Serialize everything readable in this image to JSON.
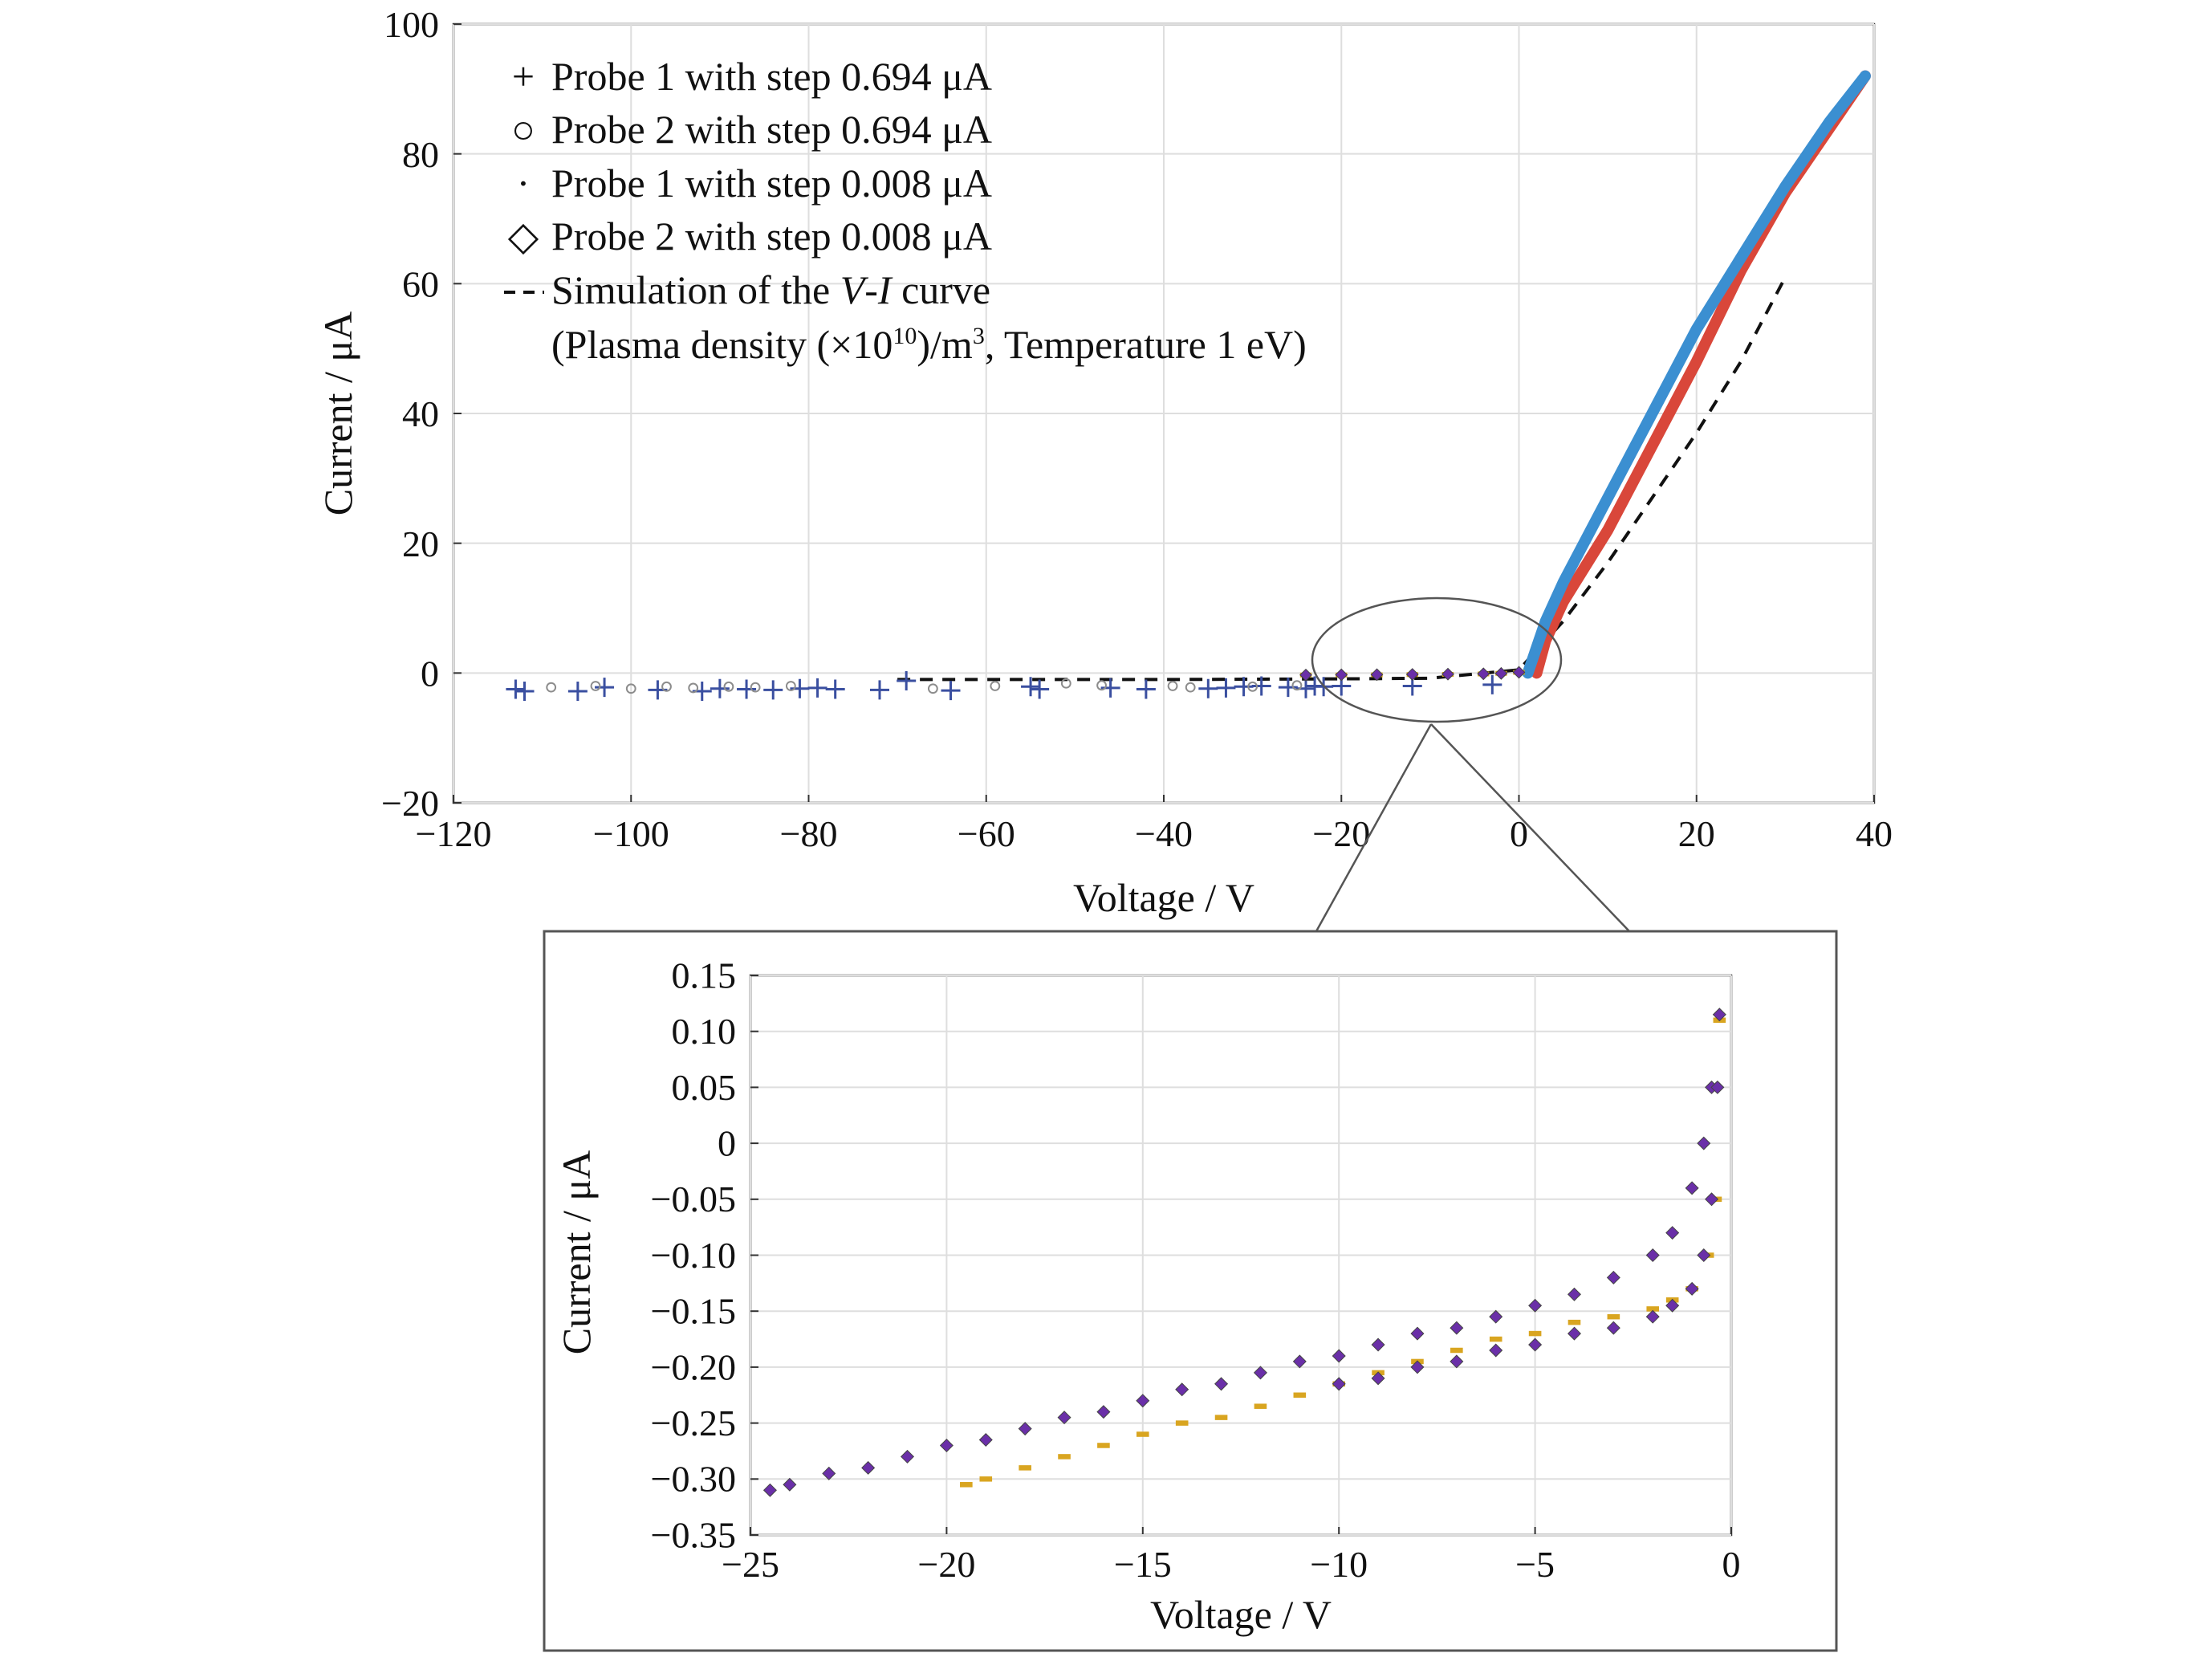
{
  "chart_data": [
    {
      "type": "scatter",
      "xlabel": "Voltage / V",
      "ylabel": "Current / μA",
      "xlim": [
        -120,
        40
      ],
      "ylim": [
        -20,
        100
      ],
      "xticks": [
        -120,
        -100,
        -80,
        -60,
        -40,
        -20,
        0,
        20,
        40
      ],
      "yticks": [
        -20,
        0,
        20,
        40,
        60,
        80,
        100
      ],
      "xtick_labels": [
        "−120",
        "−100",
        "−80",
        "−60",
        "−40",
        "−20",
        "0",
        "20",
        "40"
      ],
      "ytick_labels": [
        "−20",
        "0",
        "20",
        "40",
        "60",
        "80",
        "100"
      ],
      "grid": true,
      "legend_position": "top-left",
      "legend": [
        {
          "marker": "+",
          "label": "Probe 1 with step 0.694 μA"
        },
        {
          "marker": "○",
          "label": "Probe 2 with step 0.694 μA"
        },
        {
          "marker": "·",
          "label": "Probe 1 with step 0.008 μA"
        },
        {
          "marker": "◇",
          "label": "Probe 2 with step 0.008 μA"
        },
        {
          "marker": "--",
          "label": "Simulation of the V-I curve"
        }
      ],
      "legend_note_prefix": "(Plasma density (×10",
      "legend_note_sup1": "10",
      "legend_note_mid": ")/m",
      "legend_note_sup2": "3",
      "legend_note_suffix": ", Temperature 1 eV)",
      "series": [
        {
          "name": "Probe 1 with step 0.694 μA",
          "marker": "+",
          "color": "#3a4fa0",
          "x": [
            -113,
            -112,
            -106,
            -103,
            -97,
            -92,
            -90,
            -87,
            -84,
            -81,
            -79,
            -77,
            -72,
            -69,
            -64,
            -55,
            -54,
            -46,
            -42,
            -35,
            -33,
            -31,
            -29,
            -26,
            -24,
            -23,
            -22,
            -20,
            -12,
            -3
          ],
          "y": [
            -2.5,
            -2.8,
            -2.8,
            -2.2,
            -2.6,
            -2.8,
            -2.4,
            -2.5,
            -2.6,
            -2.4,
            -2.3,
            -2.5,
            -2.6,
            -1.2,
            -2.7,
            -2.1,
            -2.5,
            -2.3,
            -2.5,
            -2.4,
            -2.3,
            -2.1,
            -2.0,
            -2.2,
            -2.4,
            -2.0,
            -2.1,
            -2.0,
            -2.0,
            -1.8
          ]
        },
        {
          "name": "Probe 2 with step 0.694 μA",
          "marker": "o",
          "color": "#8c8c8c",
          "x": [
            -109,
            -104,
            -100,
            -96,
            -93,
            -89,
            -86,
            -82,
            -66,
            -59,
            -51,
            -47,
            -39,
            -37,
            -30,
            -25
          ],
          "y": [
            -2.2,
            -2.0,
            -2.4,
            -2.1,
            -2.3,
            -2.1,
            -2.2,
            -2.0,
            -2.4,
            -2.0,
            -1.6,
            -1.9,
            -2.0,
            -2.2,
            -2.1,
            -1.9
          ]
        },
        {
          "name": "Probe 1 with step 0.008 μA",
          "marker": "·",
          "color": "#d9a520",
          "x": [
            -24,
            -20,
            -16,
            -12,
            -8,
            -4,
            -2,
            0
          ],
          "y": [
            -0.31,
            -0.3,
            -0.28,
            -0.24,
            -0.2,
            -0.14,
            -0.05,
            0.1
          ]
        },
        {
          "name": "Probe 2 with step 0.008 μA",
          "marker": "◇",
          "color": "#6a2fa8",
          "x": [
            -24,
            -20,
            -16,
            -12,
            -8,
            -4,
            -2,
            0
          ],
          "y": [
            -0.3,
            -0.27,
            -0.25,
            -0.21,
            -0.17,
            -0.12,
            -0.06,
            0.11
          ]
        },
        {
          "name": "Simulation of the V-I curve",
          "marker": "--",
          "color": "#111111",
          "x": [
            -70,
            -40,
            -20,
            -10,
            0,
            5,
            10,
            15,
            20,
            25,
            30
          ],
          "y": [
            -1.0,
            -1.0,
            -0.9,
            -0.8,
            0.5,
            8,
            17,
            27,
            37,
            48,
            61
          ]
        },
        {
          "name": "",
          "marker": "line",
          "color": "#d9473a",
          "x": [
            2,
            3,
            5,
            10,
            15,
            20,
            25,
            30,
            35,
            39
          ],
          "y": [
            0,
            5,
            11,
            22,
            35,
            48,
            62,
            74,
            84,
            92
          ]
        },
        {
          "name": "",
          "marker": "line",
          "color": "#3b8fd1",
          "x": [
            1,
            3,
            5,
            10,
            15,
            20,
            25,
            30,
            35,
            39
          ],
          "y": [
            0,
            8,
            14,
            27,
            40,
            53,
            64,
            75,
            85,
            92
          ]
        }
      ]
    },
    {
      "type": "scatter",
      "xlabel": "Voltage / V",
      "ylabel": "Current / μA",
      "xlim": [
        -25,
        0
      ],
      "ylim": [
        -0.35,
        0.15
      ],
      "xticks": [
        -25,
        -20,
        -15,
        -10,
        -5,
        0
      ],
      "yticks": [
        -0.35,
        -0.3,
        -0.25,
        -0.2,
        -0.15,
        -0.1,
        -0.05,
        0,
        0.05,
        0.1,
        0.15
      ],
      "xtick_labels": [
        "−25",
        "−20",
        "−15",
        "−10",
        "−5",
        "0"
      ],
      "ytick_labels": [
        "−0.35",
        "−0.30",
        "−0.25",
        "−0.20",
        "−0.15",
        "−0.10",
        "−0.05",
        "0",
        "0.05",
        "0.10",
        "0.15"
      ],
      "grid": true,
      "series": [
        {
          "name": "Probe 1 with step 0.008 μA",
          "marker": "·",
          "color": "#d9a520",
          "x": [
            -19.5,
            -19,
            -18,
            -17,
            -16,
            -15,
            -14,
            -13,
            -12,
            -11,
            -10,
            -9,
            -8,
            -7,
            -6,
            -5,
            -4,
            -3,
            -2,
            -1.5,
            -1,
            -0.6,
            -0.4,
            -0.3
          ],
          "y": [
            -0.305,
            -0.3,
            -0.29,
            -0.28,
            -0.27,
            -0.26,
            -0.25,
            -0.245,
            -0.235,
            -0.225,
            -0.215,
            -0.205,
            -0.195,
            -0.185,
            -0.175,
            -0.17,
            -0.16,
            -0.155,
            -0.148,
            -0.14,
            -0.13,
            -0.1,
            -0.05,
            0.11
          ]
        },
        {
          "name": "Probe 2 with step 0.008 μA",
          "marker": "◇",
          "color": "#6a2fa8",
          "x": [
            -24.5,
            -24,
            -23,
            -22,
            -21,
            -20,
            -19,
            -18,
            -17,
            -16,
            -15,
            -14,
            -13,
            -12,
            -11,
            -10,
            -9,
            -8,
            -7,
            -6,
            -5,
            -4,
            -3,
            -2,
            -1.5,
            -1,
            -0.7,
            -0.5,
            -0.3
          ],
          "y": [
            -0.31,
            -0.305,
            -0.295,
            -0.29,
            -0.28,
            -0.27,
            -0.265,
            -0.255,
            -0.245,
            -0.24,
            -0.23,
            -0.22,
            -0.215,
            -0.205,
            -0.195,
            -0.19,
            -0.18,
            -0.17,
            -0.165,
            -0.155,
            -0.145,
            -0.135,
            -0.12,
            -0.1,
            -0.08,
            -0.04,
            0.0,
            0.05,
            0.115
          ]
        },
        {
          "name": "",
          "marker": "◇",
          "color": "#6a2fa8",
          "x": [
            -10,
            -9,
            -8,
            -7,
            -6,
            -5,
            -4,
            -3,
            -2,
            -1.5,
            -1,
            -0.7,
            -0.5,
            -0.35
          ],
          "y": [
            -0.215,
            -0.21,
            -0.2,
            -0.195,
            -0.185,
            -0.18,
            -0.17,
            -0.165,
            -0.155,
            -0.145,
            -0.13,
            -0.1,
            -0.05,
            0.05
          ]
        }
      ]
    }
  ]
}
